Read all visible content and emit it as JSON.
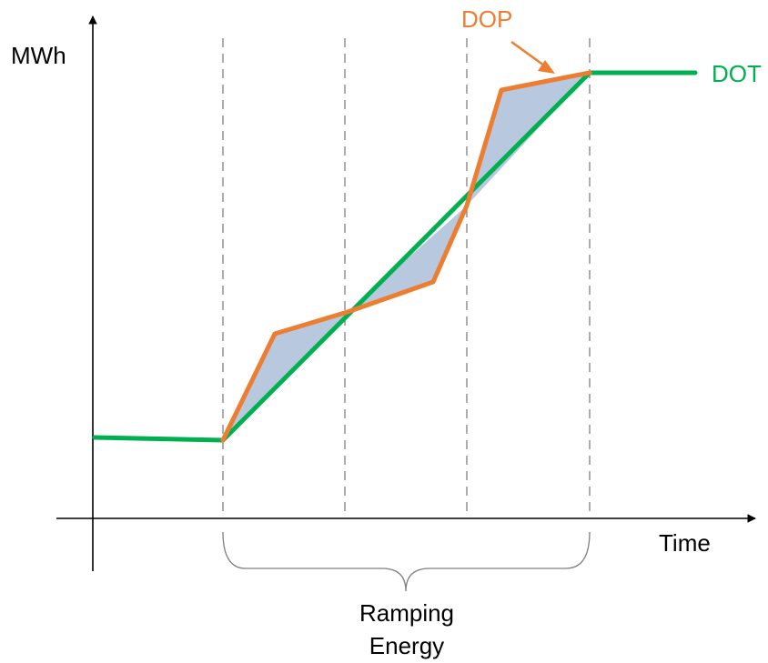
{
  "labels": {
    "y_axis": "MWh",
    "x_axis": "Time",
    "brace_line1": "Ramping",
    "brace_line2": "Energy",
    "dop": "DOP",
    "dot": "DOT"
  },
  "colors": {
    "dot": "#00b050",
    "dop": "#ed7d31",
    "fill": "#b8c9df",
    "axis": "#000000",
    "guide": "#7f7f7f",
    "brace": "#7f7f7f"
  }
}
